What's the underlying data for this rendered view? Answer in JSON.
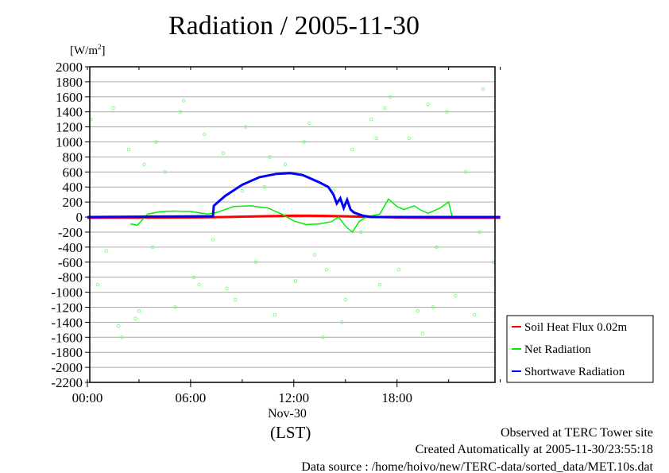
{
  "chart_data": {
    "type": "line",
    "title": "Radiation / 2005-11-30",
    "ylabel": "[W/m2]",
    "ylabel_parts": {
      "base": "[W/m",
      "sup": "2",
      "end": "]"
    },
    "xlabel": "(LST)",
    "date_label": "Nov-30",
    "xlim": [
      0,
      24
    ],
    "ylim": [
      -2200,
      2000
    ],
    "yticks": [
      2000,
      1800,
      1600,
      1400,
      1200,
      1000,
      800,
      600,
      400,
      200,
      0,
      -200,
      -400,
      -600,
      -800,
      -1000,
      -1200,
      -1400,
      -1600,
      -1800,
      -2000,
      -2200
    ],
    "xticks": [
      {
        "v": 0,
        "label": "00:00"
      },
      {
        "v": 6,
        "label": "06:00"
      },
      {
        "v": 12,
        "label": "12:00"
      },
      {
        "v": 18,
        "label": "18:00"
      }
    ],
    "grid": true,
    "legend_position": "bottom-right-outside",
    "series": [
      {
        "name": "Soil Heat Flux 0.02m",
        "color": "#ff0000",
        "x": [
          0,
          6,
          8,
          10,
          12,
          14,
          16,
          18,
          20,
          24
        ],
        "y": [
          -10,
          -5,
          0,
          10,
          20,
          15,
          5,
          -5,
          -10,
          -10
        ]
      },
      {
        "name": "Net Radiation",
        "color": "#00ee00",
        "x": [
          2.5,
          2.9,
          3.5,
          4.2,
          5,
          6,
          7,
          7.5,
          8.5,
          9.5,
          10.5,
          11.3,
          12,
          12.7,
          13.5,
          14.2,
          14.6,
          15,
          15.4,
          15.8,
          16.2,
          17,
          17.5,
          18,
          18.4,
          19,
          19.4,
          19.8,
          20.5,
          21,
          21.2,
          24
        ],
        "y": [
          -90,
          -110,
          40,
          70,
          80,
          75,
          40,
          60,
          140,
          150,
          120,
          40,
          -50,
          -100,
          -90,
          -60,
          0,
          -120,
          -200,
          -60,
          0,
          40,
          240,
          140,
          100,
          150,
          90,
          50,
          120,
          200,
          10,
          0
        ]
      },
      {
        "name": "Shortwave Radiation",
        "color": "#0000ff",
        "x": [
          0,
          7.3,
          7.35,
          7.5,
          8,
          9,
          10,
          11,
          11.8,
          12.5,
          13,
          13.5,
          14,
          14.3,
          14.5,
          14.7,
          14.9,
          15.1,
          15.3,
          15.5,
          16,
          16.5,
          24
        ],
        "y": [
          0,
          10,
          150,
          180,
          280,
          430,
          530,
          575,
          585,
          560,
          510,
          460,
          400,
          300,
          180,
          250,
          120,
          230,
          100,
          60,
          20,
          0,
          0
        ]
      }
    ],
    "scatter": {
      "name": "Net Radiation outliers",
      "color": "#66ff66",
      "x": [
        0.2,
        0.6,
        1.1,
        1.5,
        2,
        2.4,
        2.8,
        3.3,
        3.8,
        4.5,
        5.1,
        5.6,
        6.2,
        6.8,
        7.3,
        7.9,
        8.6,
        9.2,
        9.8,
        10.3,
        10.9,
        11.5,
        12.1,
        12.6,
        13.2,
        13.7,
        14.3,
        14.8,
        15.4,
        15.9,
        16.5,
        17,
        17.6,
        18.1,
        18.7,
        19.2,
        19.8,
        20.3,
        20.9,
        21.4,
        22,
        22.5,
        23,
        23.6,
        1.8,
        3,
        5.4,
        8.1,
        10.6,
        13.9,
        16.8,
        19.5,
        22.8,
        12.9,
        15,
        17.3,
        20.1,
        9,
        6.5,
        4
      ],
      "y": [
        1300,
        -900,
        -450,
        1450,
        -1600,
        900,
        -1350,
        700,
        -400,
        600,
        -1200,
        1550,
        -800,
        1100,
        -300,
        850,
        -1100,
        1200,
        -600,
        400,
        -1300,
        700,
        -850,
        1000,
        -500,
        -1600,
        350,
        -1400,
        900,
        -200,
        1300,
        -900,
        1600,
        -700,
        1050,
        -1250,
        1500,
        -400,
        1400,
        -1050,
        600,
        -1300,
        1700,
        -600,
        -1450,
        -1250,
        1400,
        -950,
        800,
        -700,
        1050,
        -1550,
        -200,
        1250,
        -1100,
        1450,
        -1200,
        350,
        -900,
        1000
      ]
    },
    "footer": [
      "Observed at TERC Tower site",
      "Created Automatically at 2005-11-30/23:55:18",
      "Data source : /home/hoivo/new/TERC-data/sorted_data/MET.10s.dat"
    ]
  }
}
